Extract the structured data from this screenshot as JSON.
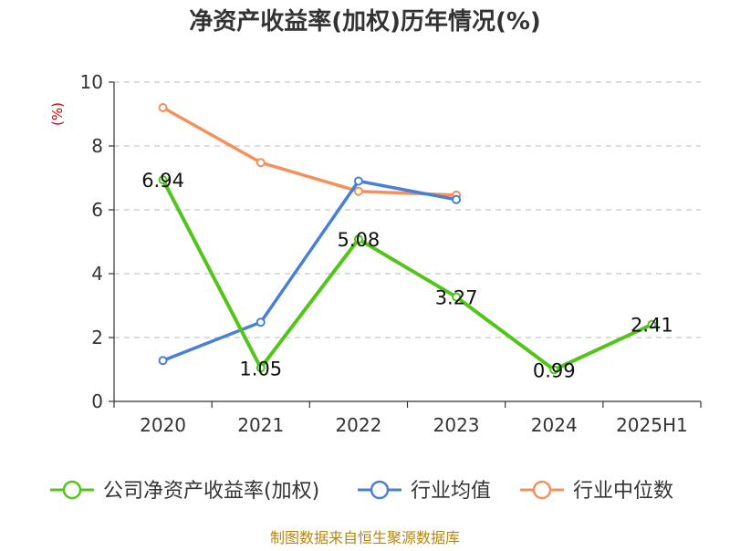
{
  "chart_data": {
    "type": "line",
    "title": "净资产收益率(加权)历年情况(%)",
    "ylabel": "(%)",
    "categories": [
      "2020",
      "2021",
      "2022",
      "2023",
      "2024",
      "2025H1"
    ],
    "ylim": [
      0,
      10
    ],
    "yticks": [
      0,
      2,
      4,
      6,
      8,
      10
    ],
    "grid": "horizontal-dashed",
    "legend_position": "bottom",
    "series": [
      {
        "name": "公司净资产收益率(加权)",
        "color": "#52c41a",
        "values": [
          6.94,
          1.05,
          5.08,
          3.27,
          0.99,
          2.41
        ],
        "labels": [
          "6.94",
          "1.05",
          "5.08",
          "3.27",
          "0.99",
          "2.41"
        ]
      },
      {
        "name": "行业均值",
        "color": "#4a7fd6",
        "values": [
          1.28,
          2.48,
          6.9,
          6.32,
          null,
          null
        ]
      },
      {
        "name": "行业中位数",
        "color": "#f5905a",
        "values": [
          9.2,
          7.48,
          6.58,
          6.46,
          null,
          null
        ]
      }
    ]
  },
  "footer": {
    "source": "制图数据来自恒生聚源数据库"
  }
}
